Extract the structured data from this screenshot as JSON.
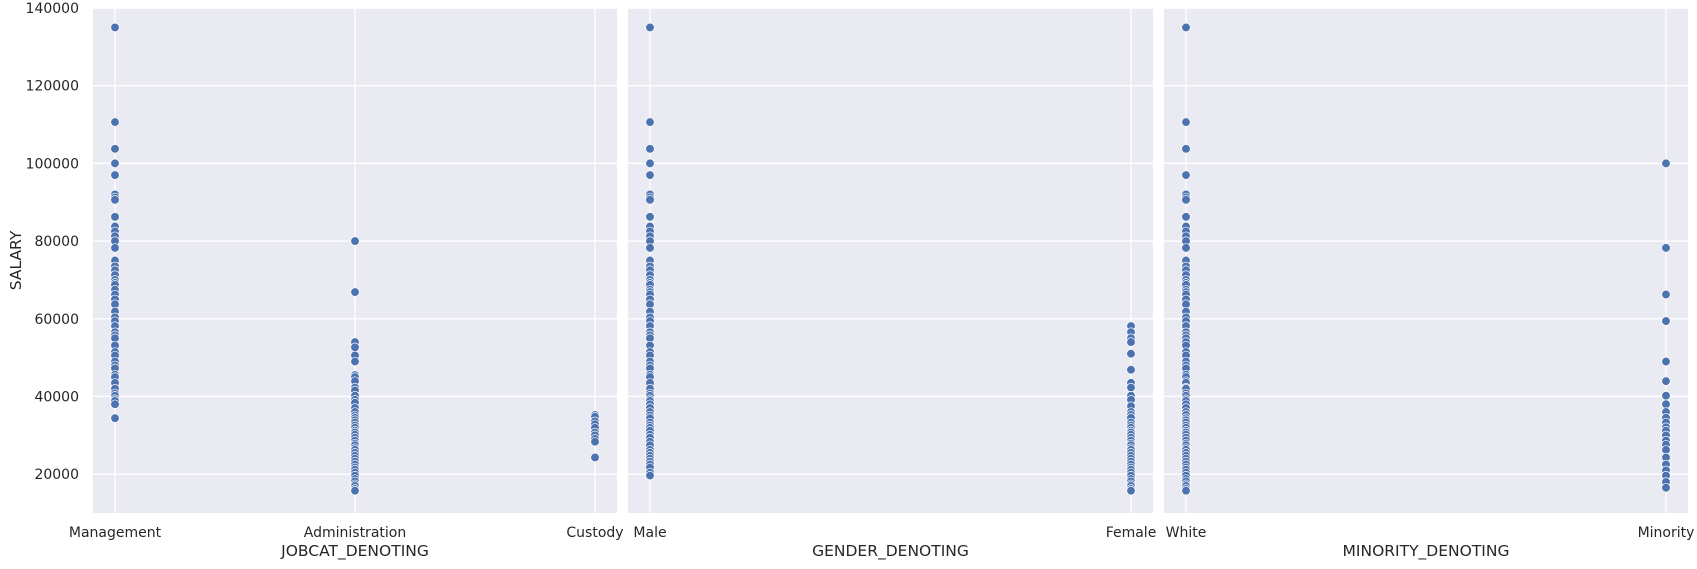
{
  "chart_data": [
    {
      "type": "scatter",
      "xlabel": "JOBCAT_DENOTING",
      "ylabel": "SALARY",
      "categories": [
        "Management",
        "Administration",
        "Custody"
      ],
      "ylim": [
        10000,
        140000
      ],
      "yticks": [
        20000,
        40000,
        60000,
        80000,
        100000,
        120000,
        140000
      ],
      "grid": true,
      "color": "#4c72b0",
      "background": "#eaeaf2",
      "points": [
        {
          "category": "Management",
          "values": [
            135000,
            110625,
            103750,
            100000,
            97000,
            92000,
            91250,
            90625,
            86250,
            83750,
            82500,
            81250,
            80000,
            78250,
            75000,
            73500,
            72500,
            71250,
            70000,
            69250,
            68750,
            67500,
            66250,
            65000,
            63750,
            61875,
            60375,
            59400,
            58125,
            56550,
            55750,
            55000,
            53125,
            51450,
            50550,
            49000,
            48000,
            47250,
            45625,
            45000,
            43500,
            42000,
            40800,
            40200,
            39300,
            38850,
            38000,
            34410
          ]
        },
        {
          "category": "Administration",
          "values": [
            80000,
            66875,
            54000,
            52650,
            50550,
            49000,
            45500,
            45000,
            43950,
            42300,
            41550,
            40200,
            39150,
            38400,
            37050,
            36000,
            35100,
            34500,
            33900,
            33300,
            32550,
            31950,
            31200,
            30750,
            30150,
            29400,
            28650,
            27900,
            27450,
            26700,
            26250,
            25500,
            24750,
            24000,
            23250,
            22500,
            21750,
            21150,
            20400,
            19650,
            18750,
            18150,
            17400,
            16950,
            16200,
            15750
          ]
        },
        {
          "category": "Custody",
          "values": [
            35250,
            34800,
            33600,
            32850,
            31950,
            30750,
            30000,
            29100,
            28350,
            24300
          ]
        }
      ]
    },
    {
      "type": "scatter",
      "xlabel": "GENDER_DENOTING",
      "ylabel": "",
      "categories": [
        "Male",
        "Female"
      ],
      "ylim": [
        10000,
        140000
      ],
      "yticks": [
        20000,
        40000,
        60000,
        80000,
        100000,
        120000,
        140000
      ],
      "grid": true,
      "color": "#4c72b0",
      "background": "#eaeaf2",
      "points": [
        {
          "category": "Male",
          "values": [
            135000,
            110625,
            103750,
            100000,
            97000,
            92000,
            91250,
            90625,
            86250,
            83750,
            82500,
            81250,
            80000,
            78250,
            75000,
            73500,
            72500,
            71250,
            70000,
            69250,
            68750,
            67500,
            66875,
            66250,
            65000,
            63750,
            61875,
            60375,
            59400,
            58125,
            56550,
            55750,
            55000,
            53125,
            51450,
            50550,
            49000,
            48000,
            47250,
            45625,
            45000,
            43500,
            42000,
            40800,
            40200,
            39300,
            38850,
            38000,
            37050,
            36000,
            35100,
            34410,
            33300,
            32550,
            31950,
            31200,
            30150,
            29400,
            28350,
            27450,
            26250,
            25500,
            24750,
            24000,
            23250,
            22500,
            21750,
            20400,
            19650
          ]
        },
        {
          "category": "Female",
          "values": [
            58125,
            56550,
            55000,
            54000,
            51000,
            46875,
            43500,
            42300,
            40200,
            39150,
            37500,
            36000,
            35250,
            34500,
            33300,
            32550,
            31950,
            31200,
            30750,
            30150,
            29400,
            28650,
            27900,
            27450,
            26700,
            26250,
            25500,
            24750,
            24000,
            23250,
            22500,
            21750,
            21150,
            20400,
            19650,
            18750,
            18150,
            17400,
            16950,
            16200,
            15750
          ]
        }
      ]
    },
    {
      "type": "scatter",
      "xlabel": "MINORITY_DENOTING",
      "ylabel": "",
      "categories": [
        "White",
        "Minority"
      ],
      "ylim": [
        10000,
        140000
      ],
      "yticks": [
        20000,
        40000,
        60000,
        80000,
        100000,
        120000,
        140000
      ],
      "grid": true,
      "color": "#4c72b0",
      "background": "#eaeaf2",
      "points": [
        {
          "category": "White",
          "values": [
            135000,
            110625,
            103750,
            97000,
            92000,
            91250,
            90625,
            86250,
            83750,
            82500,
            81250,
            80000,
            78250,
            75000,
            73500,
            72500,
            71250,
            70000,
            69250,
            68750,
            67500,
            66875,
            66250,
            65000,
            63750,
            61875,
            60375,
            59400,
            58125,
            56550,
            55750,
            55000,
            54000,
            53125,
            51450,
            50550,
            49000,
            48000,
            47250,
            45625,
            45000,
            43950,
            43500,
            42300,
            42000,
            40800,
            40200,
            39300,
            38850,
            38000,
            37050,
            36000,
            35250,
            34410,
            33900,
            33300,
            32550,
            31950,
            31200,
            30750,
            30150,
            29400,
            28650,
            27900,
            27450,
            26700,
            26250,
            25500,
            24750,
            24000,
            23250,
            22500,
            21750,
            21150,
            20400,
            19650,
            18750,
            18150,
            17400,
            16950,
            16200,
            15750
          ]
        },
        {
          "category": "Minority",
          "values": [
            100000,
            78250,
            66250,
            59400,
            49000,
            43950,
            40200,
            38000,
            36000,
            34500,
            33300,
            32100,
            31200,
            30000,
            28650,
            27600,
            26250,
            24300,
            22500,
            21000,
            19650,
            18000,
            16500
          ]
        }
      ]
    }
  ]
}
